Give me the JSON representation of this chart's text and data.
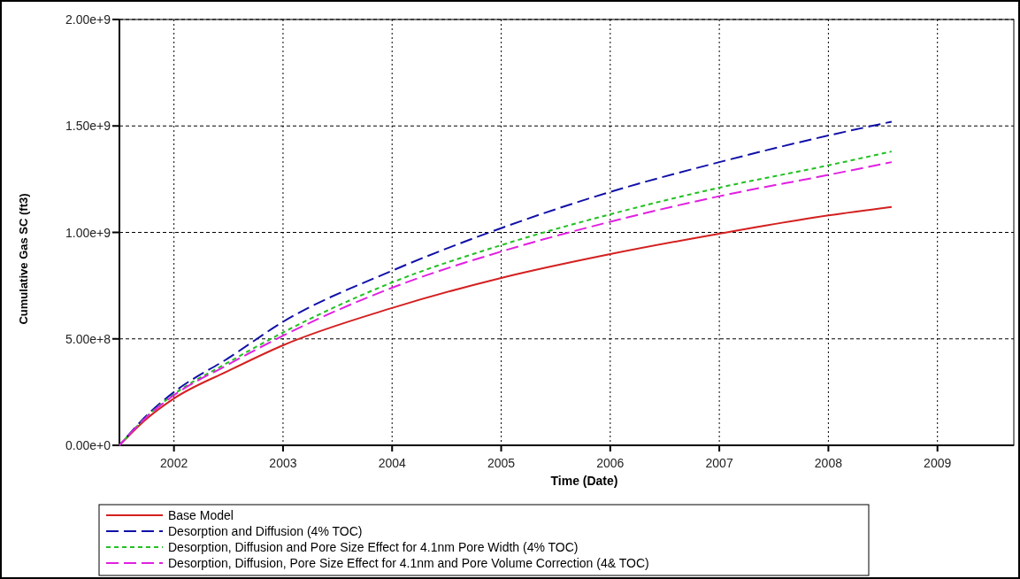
{
  "chart_data": {
    "type": "line",
    "xlabel": "Time (Date)",
    "ylabel": "Cumulative Gas SC (ft3)",
    "x": [
      2001.5,
      2001.75,
      2002,
      2002.5,
      2003,
      2004,
      2005,
      2006,
      2007,
      2008,
      2008.58
    ],
    "xlim": [
      2001.5,
      2009.7
    ],
    "xticks": [
      2002,
      2003,
      2004,
      2005,
      2006,
      2007,
      2008,
      2009
    ],
    "ylim": [
      0,
      2000000000
    ],
    "yticks": [
      {
        "value": 0,
        "label": "0.00e+0"
      },
      {
        "value": 500000000,
        "label": "5.00e+8"
      },
      {
        "value": 1000000000,
        "label": "1.00e+9"
      },
      {
        "value": 1500000000,
        "label": "1.50e+9"
      },
      {
        "value": 2000000000,
        "label": "2.00e+9"
      }
    ],
    "grid": true,
    "legend": "bottom",
    "series": [
      {
        "name": "Base Model",
        "color": "#d42020",
        "line_style": "solid",
        "values": [
          0,
          125000000,
          220000000,
          350000000,
          470000000,
          645000000,
          786000000,
          898000000,
          994000000,
          1080000000,
          1120000000
        ]
      },
      {
        "name": "Desorption and Diffusion (4% TOC)",
        "color": "#1010a8",
        "line_style": "dashed",
        "values": [
          0,
          140000000,
          250000000,
          410000000,
          580000000,
          820000000,
          1020000000,
          1190000000,
          1330000000,
          1455000000,
          1520000000
        ]
      },
      {
        "name": "Desorption, Diffusion and Pore Size Effect for 4.1nm Pore Width (4% TOC)",
        "color": "#22c022",
        "line_style": "dotted",
        "values": [
          0,
          135000000,
          240000000,
          390000000,
          530000000,
          765000000,
          940000000,
          1085000000,
          1210000000,
          1315000000,
          1380000000
        ]
      },
      {
        "name": "Desorption, Diffusion, Pore Size Effect for 4.1nm and Pore Volume Correction (4& TOC)",
        "color": "#e020e0",
        "line_style": "dashed",
        "values": [
          0,
          133000000,
          235000000,
          380000000,
          515000000,
          740000000,
          910000000,
          1050000000,
          1170000000,
          1270000000,
          1330000000
        ]
      }
    ]
  }
}
